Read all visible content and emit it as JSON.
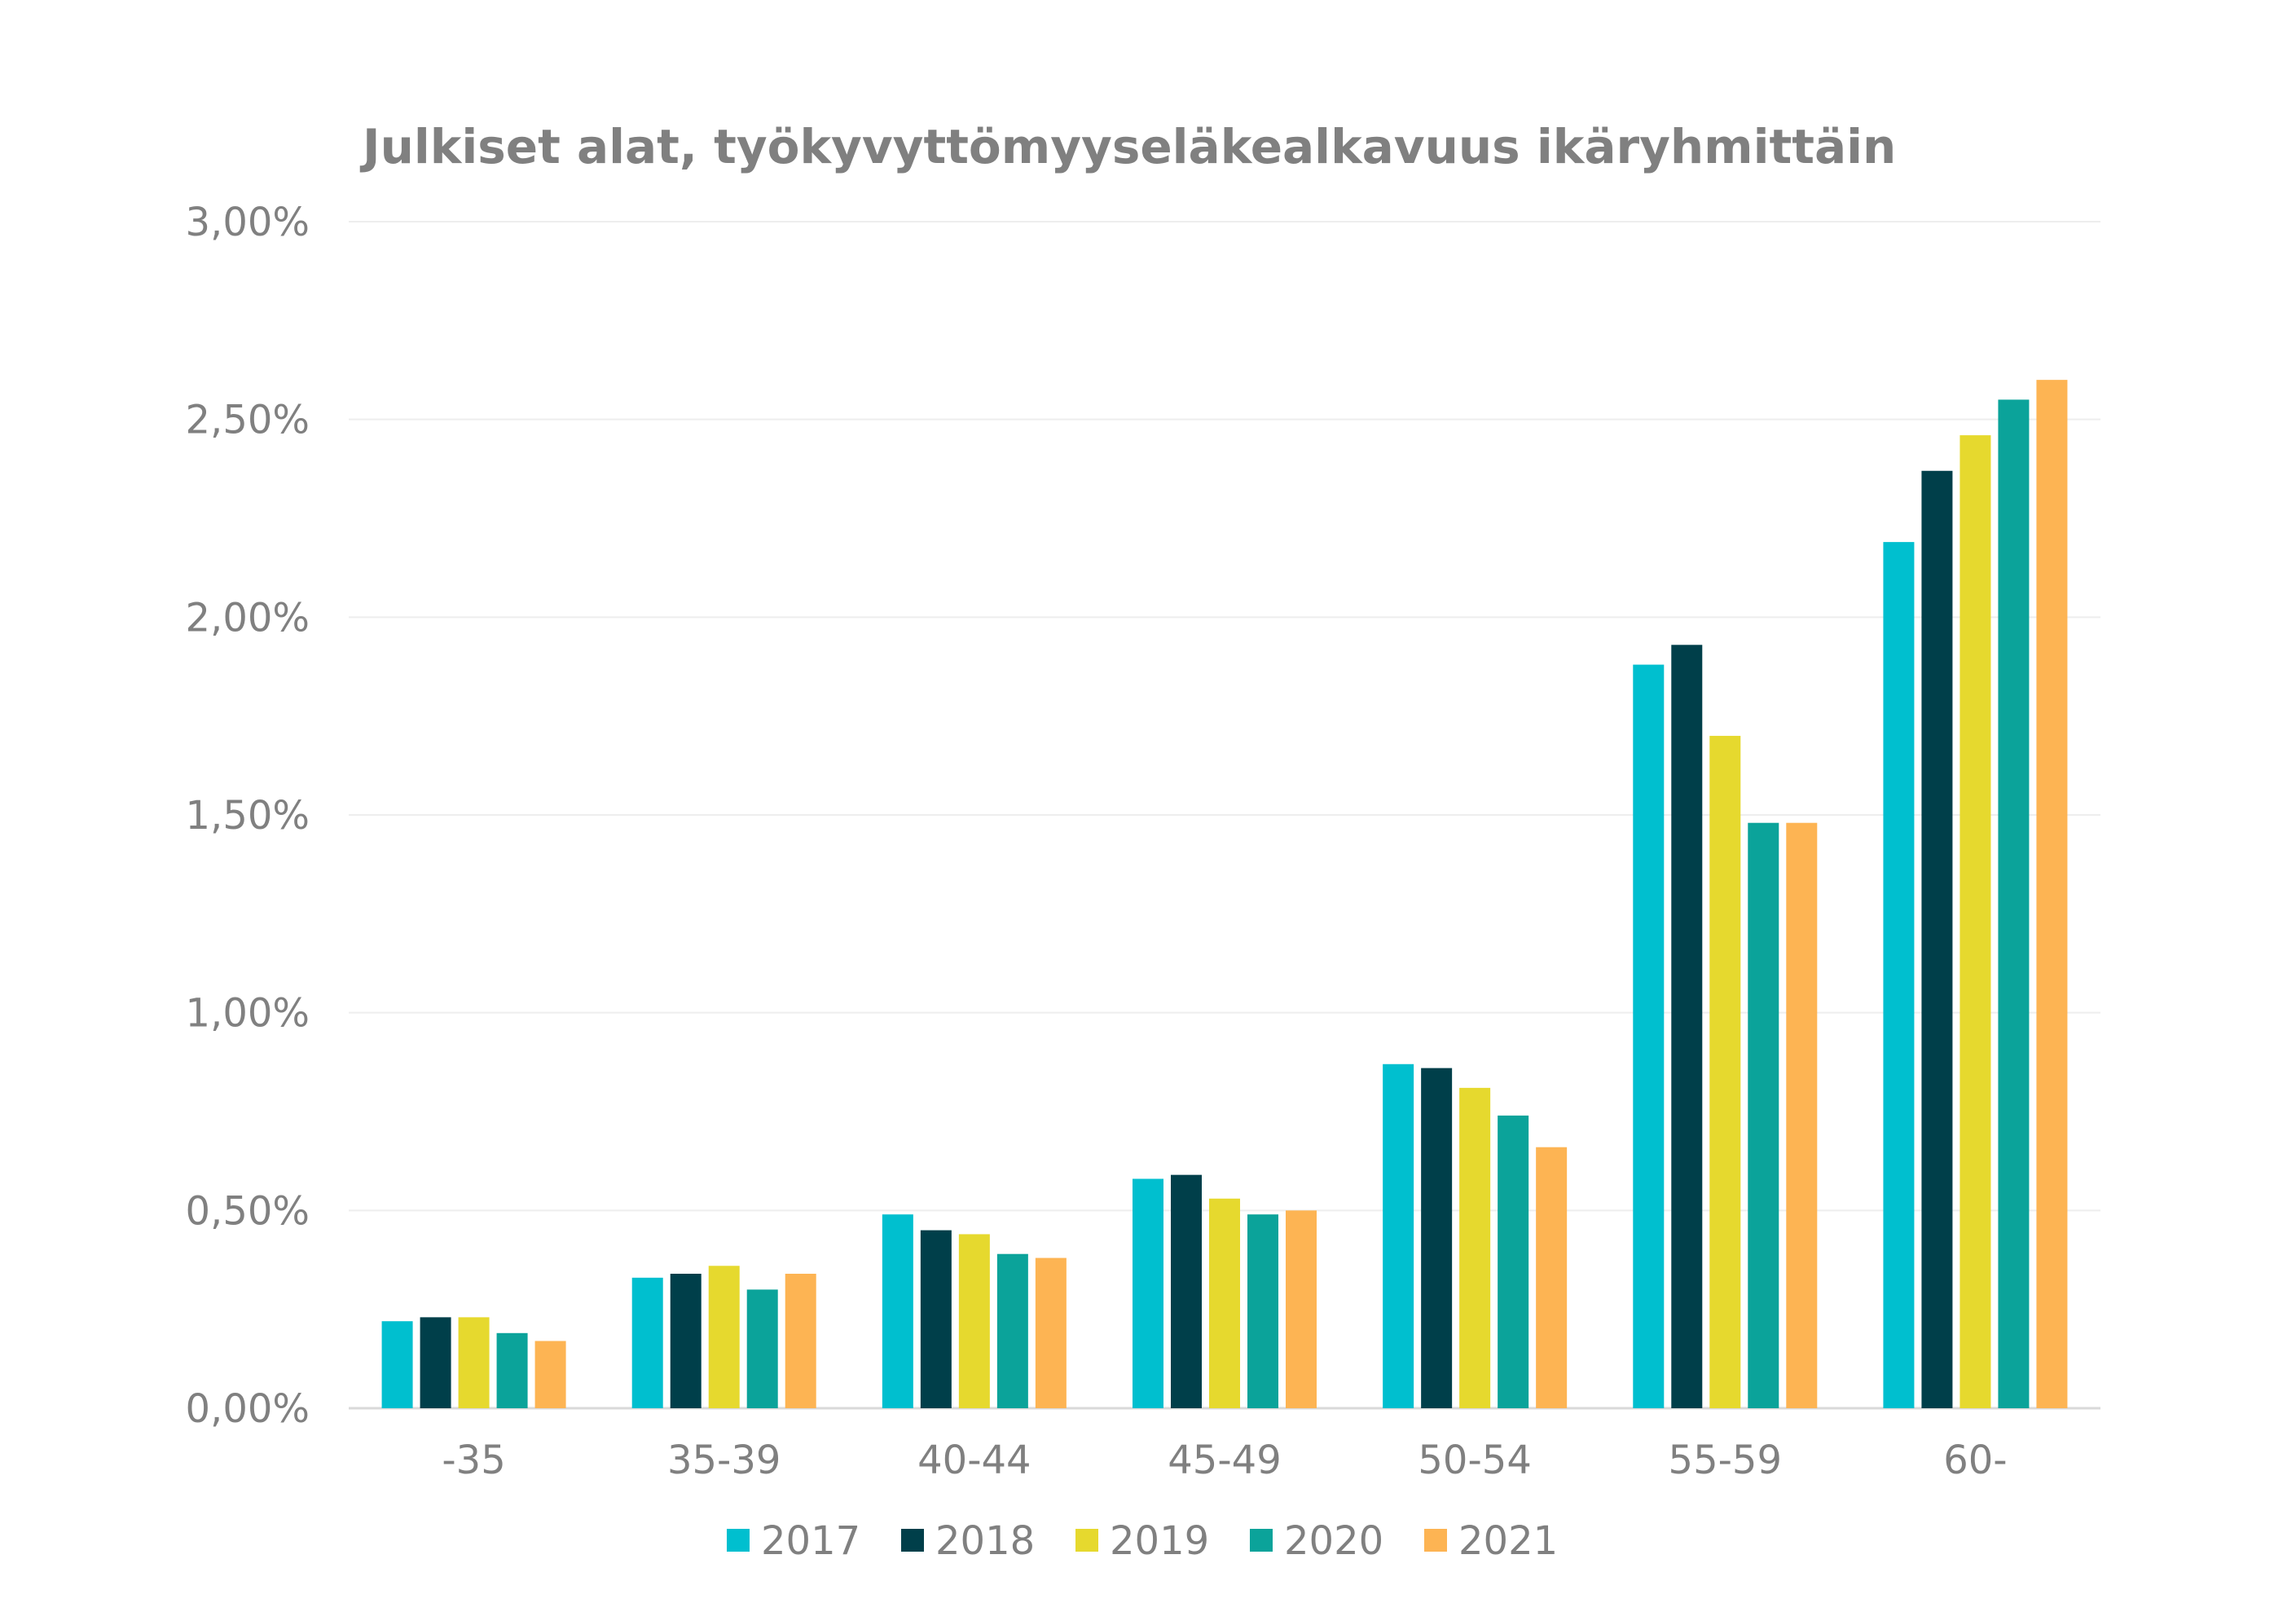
{
  "chart_data": {
    "type": "bar",
    "title": "Julkiset alat, työkyvyttömyyseläkealkavuus ikäryhmittäin",
    "xlabel": "",
    "ylabel": "",
    "ylim": [
      0,
      3.0
    ],
    "y_ticks": [
      "0,00%",
      "0,50%",
      "1,00%",
      "1,50%",
      "2,00%",
      "2,50%",
      "3,00%"
    ],
    "y_tick_values": [
      0,
      0.5,
      1.0,
      1.5,
      2.0,
      2.5,
      3.0
    ],
    "grid": true,
    "legend_position": "bottom",
    "categories": [
      "-35",
      "35-39",
      "40-44",
      "45-49",
      "50-54",
      "55-59",
      "60-"
    ],
    "series": [
      {
        "name": "2017",
        "color": "#00BFCF",
        "values": [
          0.22,
          0.33,
          0.49,
          0.58,
          0.87,
          1.88,
          2.19
        ]
      },
      {
        "name": "2018",
        "color": "#003F4A",
        "values": [
          0.23,
          0.34,
          0.45,
          0.59,
          0.86,
          1.93,
          2.37
        ]
      },
      {
        "name": "2019",
        "color": "#E6D92E",
        "values": [
          0.23,
          0.36,
          0.44,
          0.53,
          0.81,
          1.7,
          2.46
        ]
      },
      {
        "name": "2020",
        "color": "#0BA39A",
        "values": [
          0.19,
          0.3,
          0.39,
          0.49,
          0.74,
          1.48,
          2.55
        ]
      },
      {
        "name": "2021",
        "color": "#FDB453",
        "values": [
          0.17,
          0.34,
          0.38,
          0.5,
          0.66,
          1.48,
          2.6
        ]
      }
    ]
  }
}
